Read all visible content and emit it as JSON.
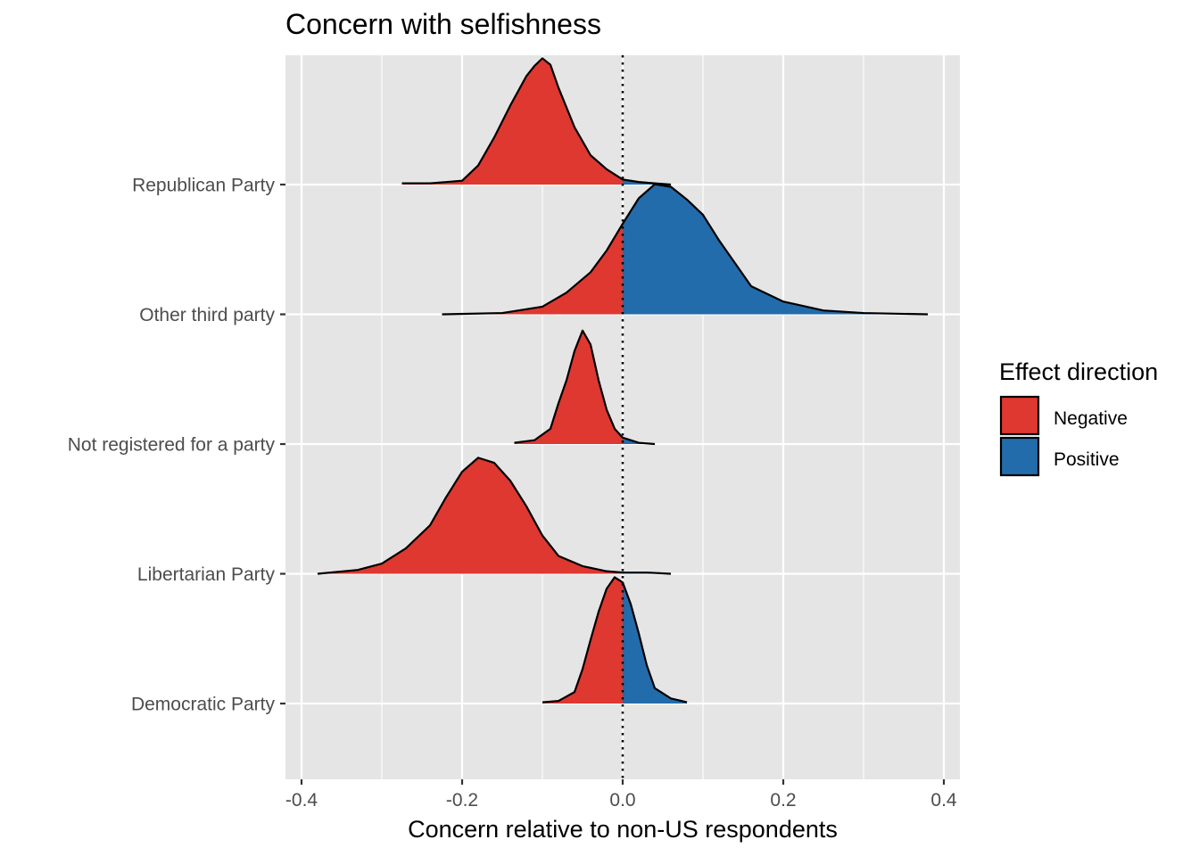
{
  "chart_data": {
    "type": "ridgeline-density",
    "title": "Concern with selfishness",
    "xlabel": "Concern relative to non-US respondents",
    "ylabel": "",
    "xlim": [
      -0.42,
      0.42
    ],
    "x_ticks": [
      -0.4,
      -0.2,
      0.0,
      0.2,
      0.4
    ],
    "x_tick_labels": [
      "-0.4",
      "-0.2",
      "0.0",
      "0.2",
      "0.4"
    ],
    "reference_line": {
      "x": 0.0,
      "style": "dotted"
    },
    "grid": true,
    "legend": {
      "title": "Effect direction",
      "placement": "right",
      "items": [
        {
          "label": "Negative",
          "color": "#DE3831"
        },
        {
          "label": "Positive",
          "color": "#236CAB"
        }
      ]
    },
    "categories": [
      "Democratic Party",
      "Libertarian Party",
      "Not registered for a party",
      "Other third party",
      "Republican Party"
    ],
    "series": [
      {
        "category": "Democratic Party",
        "density": [
          [
            -0.1,
            0.01
          ],
          [
            -0.08,
            0.02
          ],
          [
            -0.06,
            0.09
          ],
          [
            -0.05,
            0.27
          ],
          [
            -0.04,
            0.5
          ],
          [
            -0.03,
            0.72
          ],
          [
            -0.02,
            0.9
          ],
          [
            -0.01,
            0.99
          ],
          [
            0.0,
            0.95
          ],
          [
            0.01,
            0.78
          ],
          [
            0.02,
            0.55
          ],
          [
            0.03,
            0.3
          ],
          [
            0.04,
            0.12
          ],
          [
            0.06,
            0.04
          ],
          [
            0.08,
            0.01
          ]
        ]
      },
      {
        "category": "Libertarian Party",
        "density": [
          [
            -0.38,
            0.0
          ],
          [
            -0.33,
            0.03
          ],
          [
            -0.3,
            0.08
          ],
          [
            -0.27,
            0.2
          ],
          [
            -0.24,
            0.38
          ],
          [
            -0.22,
            0.6
          ],
          [
            -0.2,
            0.8
          ],
          [
            -0.18,
            0.91
          ],
          [
            -0.16,
            0.87
          ],
          [
            -0.14,
            0.73
          ],
          [
            -0.12,
            0.53
          ],
          [
            -0.1,
            0.3
          ],
          [
            -0.08,
            0.14
          ],
          [
            -0.05,
            0.06
          ],
          [
            -0.02,
            0.02
          ],
          [
            0.0,
            0.01
          ],
          [
            0.03,
            0.01
          ],
          [
            0.06,
            0.0
          ]
        ]
      },
      {
        "category": "Not registered for a party",
        "density": [
          [
            -0.135,
            0.01
          ],
          [
            -0.11,
            0.03
          ],
          [
            -0.09,
            0.12
          ],
          [
            -0.08,
            0.32
          ],
          [
            -0.07,
            0.5
          ],
          [
            -0.06,
            0.73
          ],
          [
            -0.05,
            0.89
          ],
          [
            -0.04,
            0.78
          ],
          [
            -0.03,
            0.5
          ],
          [
            -0.02,
            0.27
          ],
          [
            -0.01,
            0.12
          ],
          [
            0.0,
            0.05
          ],
          [
            0.01,
            0.03
          ],
          [
            0.02,
            0.01
          ],
          [
            0.04,
            0.0
          ]
        ]
      },
      {
        "category": "Other third party",
        "density": [
          [
            -0.225,
            0.0
          ],
          [
            -0.15,
            0.01
          ],
          [
            -0.1,
            0.06
          ],
          [
            -0.07,
            0.17
          ],
          [
            -0.04,
            0.33
          ],
          [
            -0.02,
            0.5
          ],
          [
            0.0,
            0.71
          ],
          [
            0.02,
            0.91
          ],
          [
            0.04,
            1.02
          ],
          [
            0.06,
            1.0
          ],
          [
            0.08,
            0.9
          ],
          [
            0.1,
            0.78
          ],
          [
            0.12,
            0.58
          ],
          [
            0.14,
            0.4
          ],
          [
            0.16,
            0.22
          ],
          [
            0.2,
            0.1
          ],
          [
            0.25,
            0.03
          ],
          [
            0.3,
            0.01
          ],
          [
            0.38,
            0.0
          ]
        ]
      },
      {
        "category": "Republican Party",
        "density": [
          [
            -0.275,
            0.01
          ],
          [
            -0.24,
            0.01
          ],
          [
            -0.2,
            0.03
          ],
          [
            -0.18,
            0.15
          ],
          [
            -0.16,
            0.37
          ],
          [
            -0.14,
            0.62
          ],
          [
            -0.12,
            0.85
          ],
          [
            -0.11,
            0.93
          ],
          [
            -0.1,
            0.99
          ],
          [
            -0.09,
            0.94
          ],
          [
            -0.08,
            0.76
          ],
          [
            -0.06,
            0.45
          ],
          [
            -0.04,
            0.23
          ],
          [
            -0.02,
            0.12
          ],
          [
            0.0,
            0.04
          ],
          [
            0.02,
            0.02
          ],
          [
            0.04,
            0.01
          ],
          [
            0.06,
            0.0
          ]
        ]
      }
    ]
  }
}
